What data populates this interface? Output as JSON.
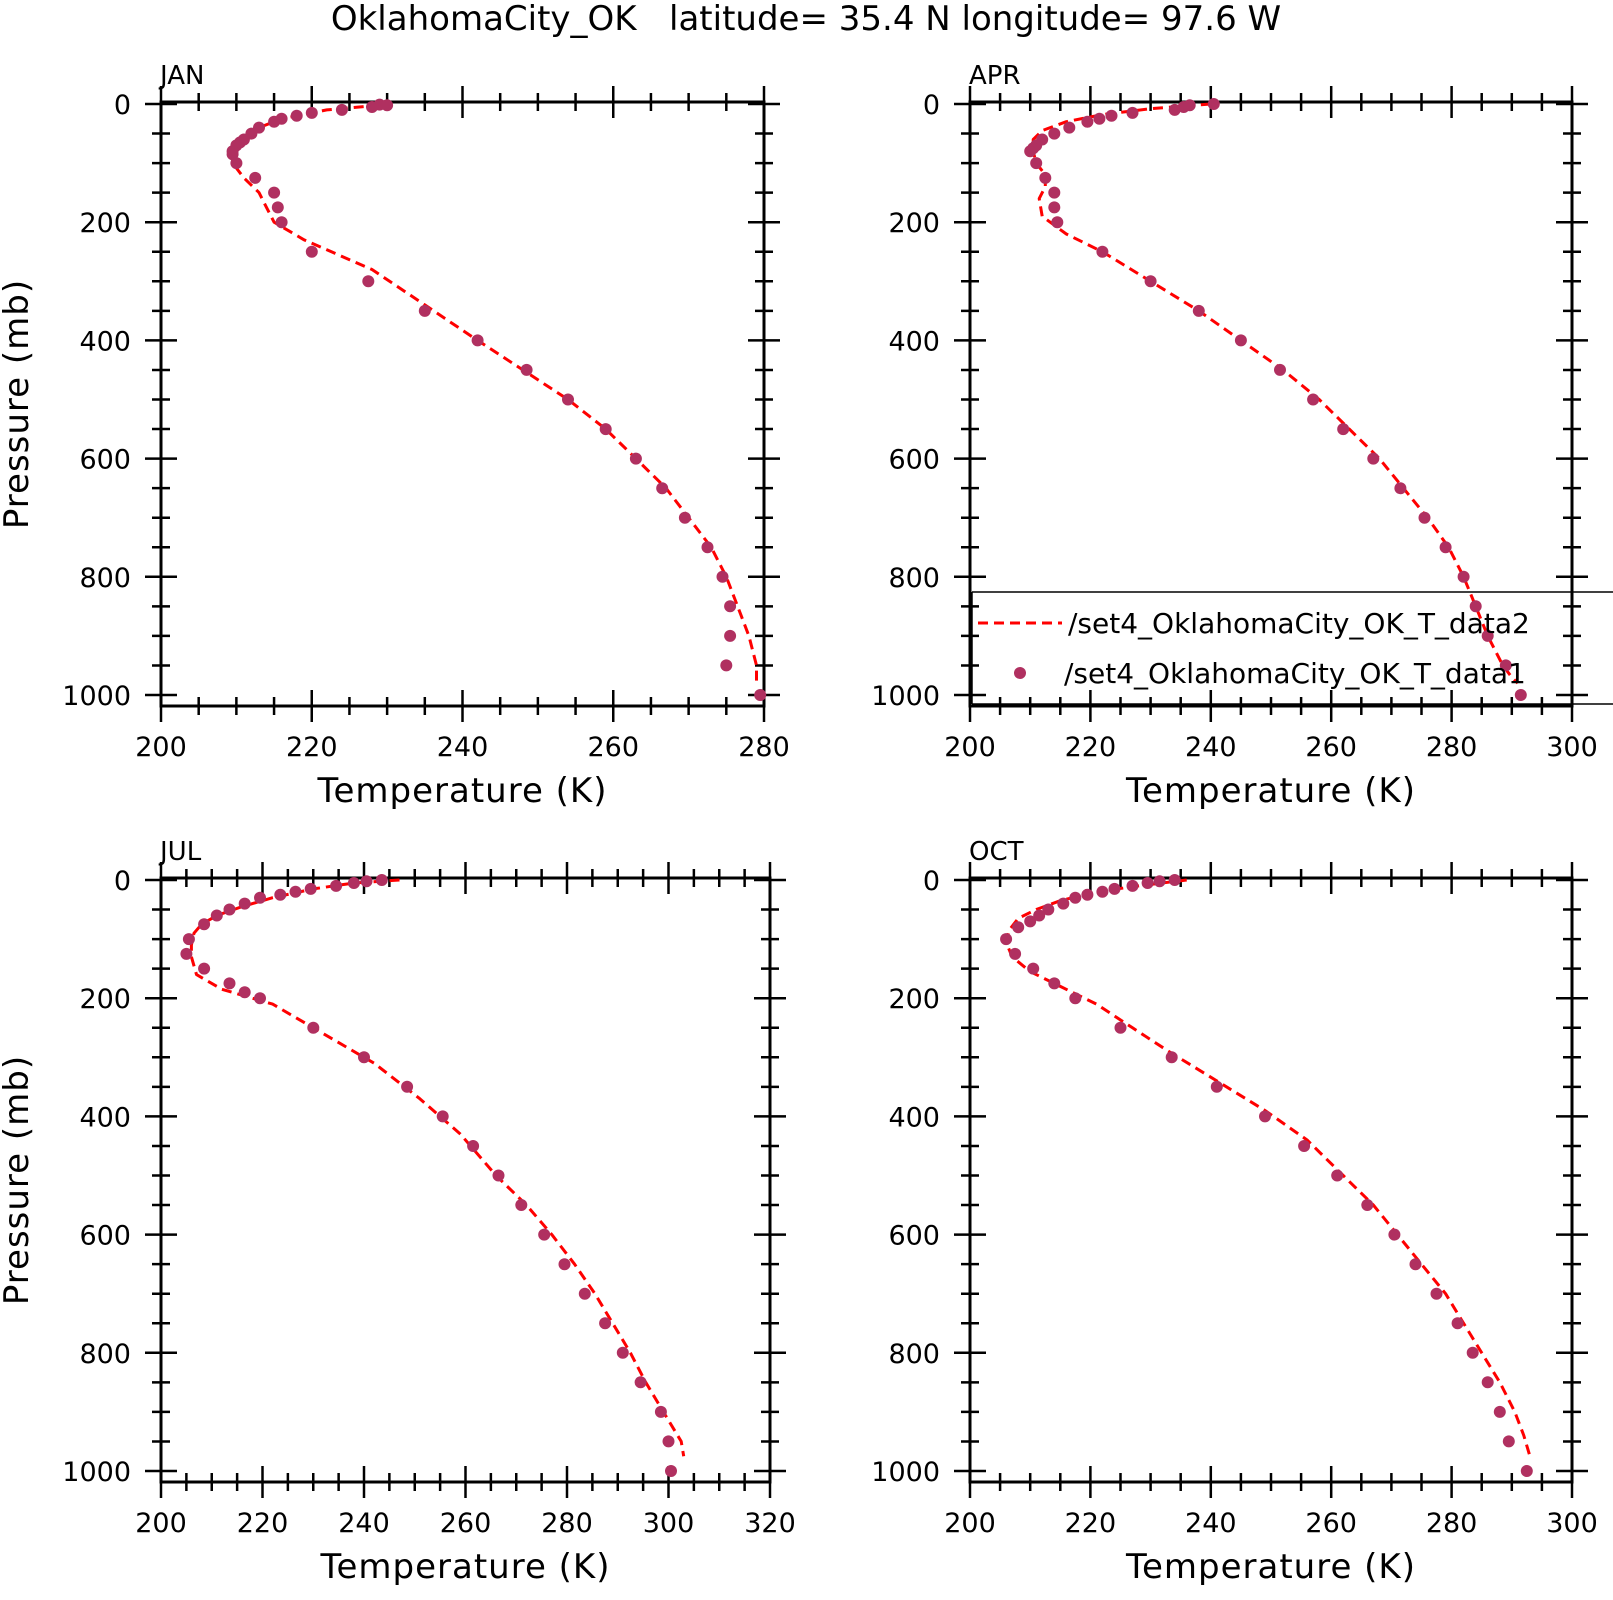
{
  "figure": {
    "title": "OklahomaCity_OK   latitude= 35.4 N longitude= 97.6 W"
  },
  "legend": {
    "entries": [
      {
        "label": "/set4_OklahomaCity_OK_T_data2",
        "style": "dashed-line",
        "color": "#ff0000"
      },
      {
        "label": "/set4_OklahomaCity_OK_T_data1",
        "style": "dot",
        "color": "#b03060"
      }
    ]
  },
  "colors": {
    "model": "#ff0000",
    "obs": "#b03060",
    "axes": "#000000"
  },
  "chart_data": [
    {
      "type": "line",
      "panel": "JAN",
      "xlabel": "Temperature (K)",
      "ylabel": "Pressure (mb)",
      "xlim": [
        200,
        280
      ],
      "xticks": [
        200,
        220,
        240,
        260,
        280
      ],
      "ylim": [
        1000,
        0
      ],
      "yticks": [
        0,
        200,
        400,
        600,
        800,
        1000
      ],
      "y_reversed": true,
      "series": [
        {
          "style": "dashed-line",
          "color": "#ff0000",
          "x": [
            229,
            222,
            216,
            212,
            210,
            209.5,
            209.5,
            211,
            213,
            214,
            215,
            219,
            228,
            235,
            242,
            248,
            254,
            259,
            263,
            267,
            270,
            273,
            275,
            276.5,
            278,
            279,
            279
          ],
          "y": [
            2,
            10,
            25,
            45,
            65,
            80,
            100,
            125,
            150,
            175,
            200,
            230,
            280,
            340,
            400,
            450,
            500,
            550,
            600,
            650,
            700,
            750,
            800,
            850,
            900,
            950,
            980
          ]
        },
        {
          "style": "dots",
          "color": "#b03060",
          "x": [
            229,
            230,
            228,
            224,
            220,
            218,
            216,
            215,
            213,
            212,
            211,
            210.5,
            210,
            209.5,
            209.5,
            210,
            212.5,
            215,
            215.5,
            216,
            220,
            227.5,
            235,
            242,
            248.5,
            254,
            259,
            263,
            266.5,
            269.5,
            272.5,
            274.5,
            275.5,
            275.5,
            275,
            279.5
          ],
          "y": [
            1,
            2,
            5,
            10,
            15,
            20,
            25,
            30,
            40,
            50,
            60,
            65,
            70,
            80,
            85,
            100,
            125,
            150,
            175,
            200,
            250,
            300,
            350,
            400,
            450,
            500,
            550,
            600,
            650,
            700,
            750,
            800,
            850,
            900,
            950,
            1000
          ]
        }
      ]
    },
    {
      "type": "line",
      "panel": "APR",
      "xlabel": "Temperature (K)",
      "ylabel": "",
      "xlim": [
        200,
        300
      ],
      "xticks": [
        200,
        220,
        240,
        260,
        280,
        300
      ],
      "ylim": [
        1000,
        0
      ],
      "yticks": [
        0,
        200,
        400,
        600,
        800,
        1000
      ],
      "y_reversed": true,
      "series": [
        {
          "style": "dashed-line",
          "color": "#ff0000",
          "x": [
            240,
            230,
            222,
            216,
            212,
            210.5,
            210.5,
            211,
            212.5,
            212.5,
            211.5,
            212,
            216,
            222,
            230,
            238,
            245,
            252,
            258,
            263,
            268,
            272,
            276,
            279.5,
            282,
            284,
            286,
            288.5,
            290,
            291
          ],
          "y": [
            0,
            8,
            18,
            30,
            45,
            60,
            80,
            100,
            120,
            140,
            160,
            190,
            220,
            250,
            300,
            350,
            400,
            450,
            500,
            550,
            600,
            650,
            700,
            750,
            800,
            850,
            900,
            950,
            970,
            980
          ]
        },
        {
          "style": "dots",
          "color": "#b03060",
          "x": [
            240.5,
            236.5,
            235.5,
            234,
            227,
            223.5,
            221.5,
            219.5,
            216.5,
            214,
            212,
            211,
            210.5,
            210,
            211,
            212.5,
            214,
            214,
            214.5,
            222,
            230,
            238,
            245,
            251.5,
            257,
            262,
            267,
            271.5,
            275.5,
            279,
            282,
            284,
            286,
            289,
            291.5
          ],
          "y": [
            0,
            2,
            5,
            10,
            15,
            20,
            25,
            30,
            40,
            50,
            60,
            70,
            75,
            80,
            100,
            125,
            150,
            175,
            200,
            250,
            300,
            350,
            400,
            450,
            500,
            550,
            600,
            650,
            700,
            750,
            800,
            850,
            900,
            950,
            1000
          ]
        }
      ]
    },
    {
      "type": "line",
      "panel": "JUL",
      "xlabel": "Temperature (K)",
      "ylabel": "Pressure (mb)",
      "xlim": [
        200,
        320
      ],
      "xticks": [
        200,
        220,
        240,
        260,
        280,
        300,
        320
      ],
      "ylim": [
        1000,
        0
      ],
      "yticks": [
        0,
        200,
        400,
        600,
        800,
        1000
      ],
      "y_reversed": true,
      "series": [
        {
          "style": "dashed-line",
          "color": "#ff0000",
          "x": [
            247,
            238,
            230,
            222,
            216,
            211,
            208,
            206.5,
            206,
            206,
            207,
            212,
            222,
            232,
            242,
            251,
            259,
            266,
            272,
            277,
            281.5,
            285.5,
            289,
            292.5,
            295.5,
            299,
            302.5,
            303
          ],
          "y": [
            0,
            5,
            15,
            30,
            45,
            60,
            75,
            90,
            110,
            130,
            160,
            185,
            210,
            260,
            310,
            370,
            430,
            500,
            550,
            600,
            650,
            700,
            750,
            800,
            850,
            900,
            950,
            975
          ]
        },
        {
          "style": "dots",
          "color": "#b03060",
          "x": [
            243.5,
            240.5,
            238,
            234.5,
            229.5,
            226.5,
            223.5,
            219.5,
            216.5,
            213.5,
            211,
            208.5,
            205.5,
            205,
            208.5,
            213.5,
            216.5,
            219.5,
            230,
            240,
            248.5,
            255.5,
            261.5,
            266.5,
            271,
            275.5,
            279.5,
            283.5,
            287.5,
            291,
            294.5,
            298.5,
            300,
            300.5
          ],
          "y": [
            0,
            2,
            5,
            10,
            15,
            20,
            25,
            30,
            40,
            50,
            60,
            75,
            100,
            125,
            150,
            175,
            190,
            200,
            250,
            300,
            350,
            400,
            450,
            500,
            550,
            600,
            650,
            700,
            750,
            800,
            850,
            900,
            950,
            1000
          ]
        }
      ]
    },
    {
      "type": "line",
      "panel": "OCT",
      "xlabel": "Temperature (K)",
      "ylabel": "",
      "xlim": [
        200,
        300
      ],
      "xticks": [
        200,
        220,
        240,
        260,
        280,
        300
      ],
      "ylim": [
        1000,
        0
      ],
      "yticks": [
        0,
        200,
        400,
        600,
        800,
        1000
      ],
      "y_reversed": true,
      "series": [
        {
          "style": "dashed-line",
          "color": "#ff0000",
          "x": [
            236,
            228,
            221,
            215,
            211,
            208,
            206.5,
            206,
            207,
            210,
            215,
            221,
            227,
            233,
            241,
            249,
            256,
            262,
            267,
            271,
            275,
            279,
            282,
            285,
            288,
            290.5,
            292,
            293
          ],
          "y": [
            0,
            10,
            20,
            35,
            50,
            65,
            85,
            105,
            130,
            155,
            180,
            210,
            250,
            290,
            340,
            390,
            440,
            500,
            550,
            600,
            650,
            700,
            750,
            800,
            850,
            900,
            940,
            975
          ]
        },
        {
          "style": "dots",
          "color": "#b03060",
          "x": [
            234,
            231.5,
            229.5,
            227,
            224,
            222,
            219.5,
            217.5,
            215.5,
            213,
            211.5,
            210,
            208,
            206,
            207.5,
            210.5,
            214,
            217.5,
            225,
            233.5,
            241,
            249,
            255.5,
            261,
            266,
            270.5,
            274,
            277.5,
            281,
            283.5,
            286,
            288,
            289.5,
            292.5
          ],
          "y": [
            0,
            2,
            5,
            10,
            15,
            20,
            25,
            30,
            40,
            50,
            60,
            70,
            80,
            100,
            125,
            150,
            175,
            200,
            250,
            300,
            350,
            400,
            450,
            500,
            550,
            600,
            650,
            700,
            750,
            800,
            850,
            900,
            950,
            1000
          ]
        }
      ]
    }
  ]
}
